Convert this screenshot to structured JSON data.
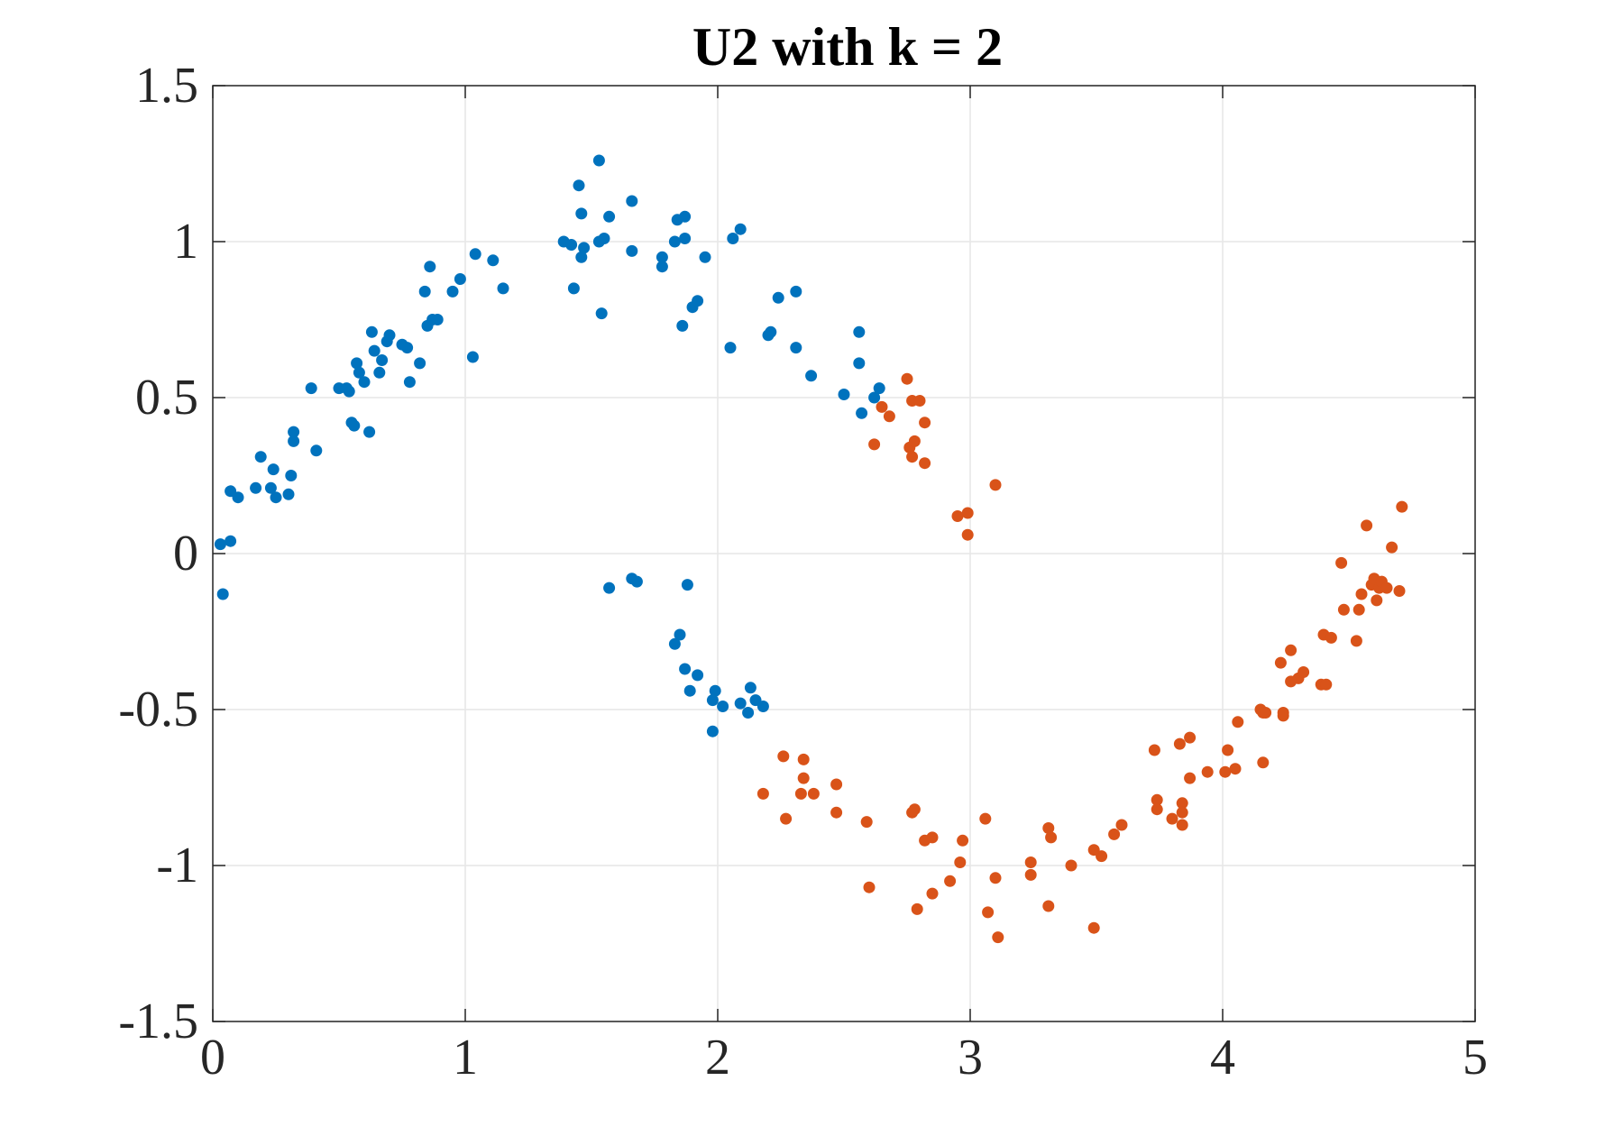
{
  "chart_data": {
    "type": "scatter",
    "title": "U2 with k = 2",
    "xlabel": "",
    "ylabel": "",
    "xlim": [
      0,
      5
    ],
    "ylim": [
      -1.5,
      1.5
    ],
    "xticks": [
      "0",
      "1",
      "2",
      "3",
      "4",
      "5"
    ],
    "yticks": [
      "1.5",
      "1",
      "0.5",
      "0",
      "-0.5",
      "-1",
      "-1.5"
    ],
    "grid": true,
    "legend": "none",
    "series": [
      {
        "color": "#0072BD",
        "points": [
          [
            0.03,
            0.03
          ],
          [
            0.07,
            0.04
          ],
          [
            0.04,
            -0.13
          ],
          [
            0.07,
            0.2
          ],
          [
            0.1,
            0.18
          ],
          [
            0.17,
            0.21
          ],
          [
            0.19,
            0.31
          ],
          [
            0.23,
            0.21
          ],
          [
            0.24,
            0.27
          ],
          [
            0.25,
            0.18
          ],
          [
            0.3,
            0.19
          ],
          [
            0.31,
            0.25
          ],
          [
            0.32,
            0.39
          ],
          [
            0.32,
            0.36
          ],
          [
            0.39,
            0.53
          ],
          [
            0.41,
            0.33
          ],
          [
            0.5,
            0.53
          ],
          [
            0.53,
            0.53
          ],
          [
            0.54,
            0.52
          ],
          [
            0.55,
            0.42
          ],
          [
            0.56,
            0.41
          ],
          [
            0.57,
            0.61
          ],
          [
            0.58,
            0.58
          ],
          [
            0.6,
            0.55
          ],
          [
            0.62,
            0.39
          ],
          [
            0.63,
            0.71
          ],
          [
            0.64,
            0.65
          ],
          [
            0.66,
            0.58
          ],
          [
            0.67,
            0.62
          ],
          [
            0.69,
            0.68
          ],
          [
            0.7,
            0.7
          ],
          [
            0.75,
            0.67
          ],
          [
            0.77,
            0.66
          ],
          [
            0.78,
            0.55
          ],
          [
            0.82,
            0.61
          ],
          [
            0.84,
            0.84
          ],
          [
            0.85,
            0.73
          ],
          [
            0.86,
            0.92
          ],
          [
            0.87,
            0.75
          ],
          [
            0.89,
            0.75
          ],
          [
            0.95,
            0.84
          ],
          [
            0.98,
            0.88
          ],
          [
            1.03,
            0.63
          ],
          [
            1.04,
            0.96
          ],
          [
            1.11,
            0.94
          ],
          [
            1.15,
            0.85
          ],
          [
            1.39,
            1.0
          ],
          [
            1.42,
            0.99
          ],
          [
            1.43,
            0.85
          ],
          [
            1.45,
            1.18
          ],
          [
            1.46,
            1.09
          ],
          [
            1.46,
            0.95
          ],
          [
            1.47,
            0.98
          ],
          [
            1.53,
            1.26
          ],
          [
            1.53,
            1.0
          ],
          [
            1.54,
            0.77
          ],
          [
            1.55,
            1.01
          ],
          [
            1.57,
            1.08
          ],
          [
            1.66,
            1.13
          ],
          [
            1.66,
            0.97
          ],
          [
            1.78,
            0.95
          ],
          [
            1.78,
            0.92
          ],
          [
            1.83,
            1.0
          ],
          [
            1.84,
            1.07
          ],
          [
            1.86,
            0.73
          ],
          [
            1.87,
            1.01
          ],
          [
            1.87,
            1.08
          ],
          [
            1.9,
            0.79
          ],
          [
            1.92,
            0.81
          ],
          [
            1.95,
            0.95
          ],
          [
            2.05,
            0.66
          ],
          [
            2.06,
            1.01
          ],
          [
            2.09,
            1.04
          ],
          [
            2.2,
            0.7
          ],
          [
            2.21,
            0.71
          ],
          [
            2.24,
            0.82
          ],
          [
            2.31,
            0.66
          ],
          [
            2.31,
            0.84
          ],
          [
            2.37,
            0.57
          ],
          [
            2.5,
            0.51
          ],
          [
            2.56,
            0.61
          ],
          [
            2.56,
            0.71
          ],
          [
            2.57,
            0.45
          ],
          [
            2.62,
            0.5
          ],
          [
            2.64,
            0.53
          ],
          [
            1.57,
            -0.11
          ],
          [
            1.66,
            -0.08
          ],
          [
            1.68,
            -0.09
          ],
          [
            1.88,
            -0.1
          ],
          [
            1.83,
            -0.29
          ],
          [
            1.85,
            -0.26
          ],
          [
            1.87,
            -0.37
          ],
          [
            1.89,
            -0.44
          ],
          [
            1.92,
            -0.39
          ],
          [
            1.98,
            -0.47
          ],
          [
            1.98,
            -0.57
          ],
          [
            1.99,
            -0.44
          ],
          [
            2.02,
            -0.49
          ],
          [
            2.09,
            -0.48
          ],
          [
            2.12,
            -0.51
          ],
          [
            2.13,
            -0.43
          ],
          [
            2.15,
            -0.47
          ],
          [
            2.18,
            -0.49
          ]
        ]
      },
      {
        "color": "#D95319",
        "points": [
          [
            2.62,
            0.35
          ],
          [
            2.65,
            0.47
          ],
          [
            2.68,
            0.44
          ],
          [
            2.75,
            0.56
          ],
          [
            2.76,
            0.34
          ],
          [
            2.77,
            0.49
          ],
          [
            2.77,
            0.31
          ],
          [
            2.78,
            0.36
          ],
          [
            2.8,
            0.49
          ],
          [
            2.82,
            0.42
          ],
          [
            2.82,
            0.29
          ],
          [
            2.95,
            0.12
          ],
          [
            2.99,
            0.13
          ],
          [
            2.99,
            0.06
          ],
          [
            3.1,
            0.22
          ],
          [
            4.47,
            -0.03
          ],
          [
            4.48,
            -0.18
          ],
          [
            4.53,
            -0.28
          ],
          [
            4.54,
            -0.18
          ],
          [
            4.55,
            -0.13
          ],
          [
            4.57,
            0.09
          ],
          [
            4.59,
            -0.1
          ],
          [
            4.6,
            -0.08
          ],
          [
            4.61,
            -0.15
          ],
          [
            4.62,
            -0.11
          ],
          [
            4.63,
            -0.09
          ],
          [
            4.65,
            -0.11
          ],
          [
            4.67,
            0.02
          ],
          [
            4.7,
            -0.12
          ],
          [
            4.71,
            0.15
          ],
          [
            4.4,
            -0.26
          ],
          [
            4.43,
            -0.27
          ],
          [
            4.39,
            -0.42
          ],
          [
            4.41,
            -0.42
          ],
          [
            4.27,
            -0.31
          ],
          [
            4.3,
            -0.4
          ],
          [
            4.32,
            -0.38
          ],
          [
            4.23,
            -0.35
          ],
          [
            4.27,
            -0.41
          ],
          [
            4.24,
            -0.52
          ],
          [
            4.24,
            -0.51
          ],
          [
            4.15,
            -0.5
          ],
          [
            4.16,
            -0.51
          ],
          [
            4.17,
            -0.51
          ],
          [
            4.16,
            -0.67
          ],
          [
            4.06,
            -0.54
          ],
          [
            4.05,
            -0.69
          ],
          [
            4.02,
            -0.63
          ],
          [
            4.01,
            -0.7
          ],
          [
            3.94,
            -0.7
          ],
          [
            3.87,
            -0.59
          ],
          [
            3.87,
            -0.72
          ],
          [
            3.83,
            -0.61
          ],
          [
            3.84,
            -0.8
          ],
          [
            3.84,
            -0.83
          ],
          [
            3.84,
            -0.87
          ],
          [
            3.8,
            -0.85
          ],
          [
            3.73,
            -0.63
          ],
          [
            3.74,
            -0.79
          ],
          [
            3.74,
            -0.82
          ],
          [
            3.6,
            -0.87
          ],
          [
            3.57,
            -0.9
          ],
          [
            3.52,
            -0.97
          ],
          [
            3.49,
            -0.95
          ],
          [
            3.49,
            -1.2
          ],
          [
            3.4,
            -1.0
          ],
          [
            3.31,
            -0.88
          ],
          [
            3.32,
            -0.91
          ],
          [
            3.31,
            -1.13
          ],
          [
            3.24,
            -0.99
          ],
          [
            3.24,
            -1.03
          ],
          [
            3.11,
            -1.23
          ],
          [
            3.1,
            -1.04
          ],
          [
            3.06,
            -0.85
          ],
          [
            3.07,
            -1.15
          ],
          [
            2.97,
            -0.92
          ],
          [
            2.96,
            -0.99
          ],
          [
            2.92,
            -1.05
          ],
          [
            2.85,
            -0.91
          ],
          [
            2.85,
            -1.09
          ],
          [
            2.82,
            -0.92
          ],
          [
            2.78,
            -0.82
          ],
          [
            2.77,
            -0.83
          ],
          [
            2.79,
            -1.14
          ],
          [
            2.59,
            -0.86
          ],
          [
            2.6,
            -1.07
          ],
          [
            2.47,
            -0.74
          ],
          [
            2.47,
            -0.83
          ],
          [
            2.38,
            -0.77
          ],
          [
            2.34,
            -0.66
          ],
          [
            2.34,
            -0.72
          ],
          [
            2.33,
            -0.77
          ],
          [
            2.26,
            -0.65
          ],
          [
            2.27,
            -0.85
          ],
          [
            2.18,
            -0.77
          ]
        ]
      }
    ]
  }
}
